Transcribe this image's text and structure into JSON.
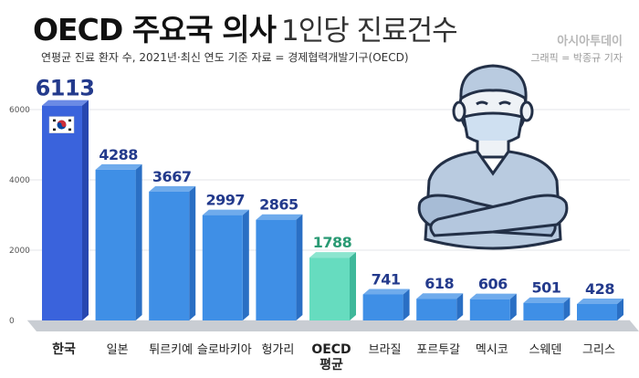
{
  "header": {
    "title_bold": "OECD 주요국 의사",
    "title_light": "1인당 진료건수",
    "subtitle": "연평균 진료 환자 수, 2021년·최신 연도 기준  자료 = 경제협력개발기구(OECD)",
    "publisher": "아시아투데이",
    "credit": "그래픽 = 박종규 기자"
  },
  "colors": {
    "bar_blue": "#3f8fe6",
    "bar_blue_side": "#2a6fc4",
    "bar_korea": "#3a63dc",
    "bar_korea_side": "#2747b0",
    "bar_oecd": "#66dcbf",
    "bar_oecd_side": "#3fb89a",
    "value_blue": "#233a8c",
    "value_oecd": "#2a9a74",
    "floor": "#c9cdd3"
  },
  "chart_data": {
    "type": "bar",
    "title": "OECD 주요국 의사 1인당 진료건수",
    "categories": [
      "한국",
      "일본",
      "튀르키예",
      "슬로바키아",
      "헝가리",
      "OECD 평균",
      "브라질",
      "포르투갈",
      "멕시코",
      "스웨덴",
      "그리스"
    ],
    "values": [
      6113,
      4288,
      3667,
      2997,
      2865,
      1788,
      741,
      618,
      606,
      501,
      428
    ],
    "ylim": [
      0,
      6000
    ],
    "yticks": [
      0,
      2000,
      4000,
      6000
    ],
    "grid": true,
    "highlight": {
      "한국": "bar_korea",
      "OECD 평균": "bar_oecd"
    }
  }
}
